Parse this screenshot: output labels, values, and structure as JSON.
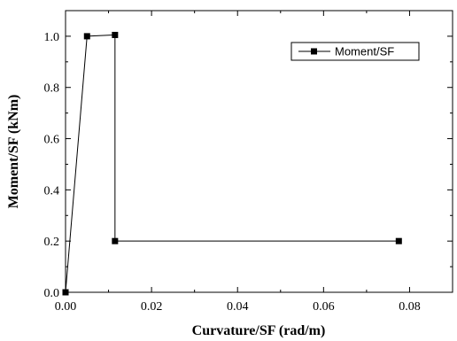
{
  "chart_data": {
    "type": "line",
    "title": "",
    "xlabel": "Curvature/SF (rad/m)",
    "ylabel": "Moment/SF (kNm)",
    "xlim": [
      0.0,
      0.09
    ],
    "ylim": [
      0.0,
      1.1
    ],
    "xticks": [
      0.0,
      0.02,
      0.04,
      0.06,
      0.08
    ],
    "xtick_labels": [
      "0.00",
      "0.02",
      "0.04",
      "0.06",
      "0.08"
    ],
    "yticks": [
      0.0,
      0.2,
      0.4,
      0.6,
      0.8,
      1.0
    ],
    "ytick_labels": [
      "0.0",
      "0.2",
      "0.4",
      "0.6",
      "0.8",
      "1.0"
    ],
    "grid": false,
    "legend_position": "top-right",
    "series": [
      {
        "name": "Moment/SF",
        "marker": "square",
        "color": "#000000",
        "x": [
          0.0,
          0.005,
          0.0115,
          0.0115,
          0.0775
        ],
        "y": [
          0.0,
          1.0,
          1.005,
          0.2,
          0.2
        ]
      }
    ]
  }
}
